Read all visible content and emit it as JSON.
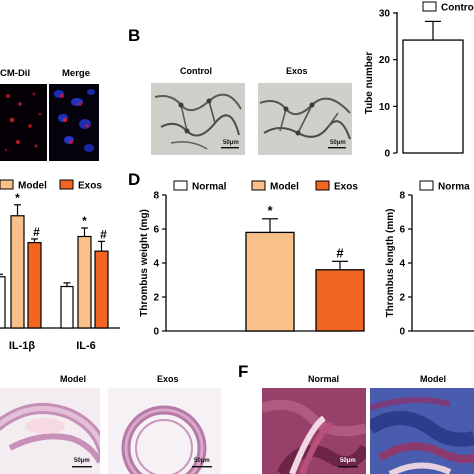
{
  "panels": {
    "a_fluor": {
      "labels": [
        "CM-Dil",
        "Merge"
      ]
    },
    "b": {
      "letter": "B",
      "images": [
        "Control",
        "Exos"
      ],
      "scale": "50μm",
      "chart_title_legend": "Control"
    },
    "c_partial": {
      "legend": [
        "Model",
        "Exos"
      ]
    },
    "d": {
      "letter": "D",
      "legend": [
        "Normal",
        "Model",
        "Exos"
      ]
    },
    "d2_partial": {
      "legend": [
        "Norma"
      ]
    },
    "e_partial": {
      "images": [
        "Model",
        "Exos"
      ],
      "scale": "50μm"
    },
    "f": {
      "letter": "F",
      "images": [
        "Normal",
        "Model"
      ],
      "scale": "50μm"
    }
  },
  "colors": {
    "normal": "#ffffff",
    "model": "#f9c08a",
    "exos": "#f26522"
  },
  "chart_data": [
    {
      "id": "tube",
      "type": "bar",
      "ylabel": "Tube number",
      "ylim": [
        0,
        30
      ],
      "yticks": [
        0,
        10,
        20,
        30
      ],
      "legend": [
        "Control"
      ],
      "series": [
        {
          "name": "Control",
          "values": [
            24.2
          ],
          "error": [
            4.0
          ]
        }
      ],
      "categories": [
        ""
      ]
    },
    {
      "id": "cytokines",
      "type": "bar",
      "categories": [
        "IL-1β",
        "IL-6"
      ],
      "legend": [
        "Model",
        "Exos"
      ],
      "series": [
        {
          "values": [
            0.42,
            0.34
          ],
          "error": [
            0.02,
            0.03
          ]
        },
        {
          "name": "Model",
          "values": [
            0.92,
            0.75
          ],
          "error": [
            0.09,
            0.07
          ]
        },
        {
          "name": "Exos",
          "values": [
            0.7,
            0.63
          ],
          "error": [
            0.03,
            0.08
          ]
        }
      ],
      "annotations": [
        {
          "category": "IL-1β",
          "series": 1,
          "text": "*"
        },
        {
          "category": "IL-1β",
          "series": 2,
          "text": "#"
        },
        {
          "category": "IL-6",
          "series": 1,
          "text": "*"
        },
        {
          "category": "IL-6",
          "series": 2,
          "text": "#"
        }
      ]
    },
    {
      "id": "thrombus_weight",
      "type": "bar",
      "ylabel": "Thrombus weight (mg)",
      "ylim": [
        0,
        8
      ],
      "yticks": [
        0,
        2,
        4,
        6,
        8
      ],
      "categories": [
        "Normal",
        "Model",
        "Exos"
      ],
      "legend": [
        "Normal",
        "Model",
        "Exos"
      ],
      "values": [
        0,
        5.8,
        3.6
      ],
      "error": [
        0,
        0.8,
        0.5
      ],
      "annotations": [
        {
          "category": "Model",
          "text": "*"
        },
        {
          "category": "Exos",
          "text": "#"
        }
      ]
    },
    {
      "id": "thrombus_length",
      "type": "bar",
      "ylabel": "Thrombus length (mm)",
      "ylim": [
        0,
        8
      ],
      "yticks": [
        0,
        2,
        4,
        6,
        8
      ],
      "legend": [
        "Norma"
      ]
    }
  ]
}
